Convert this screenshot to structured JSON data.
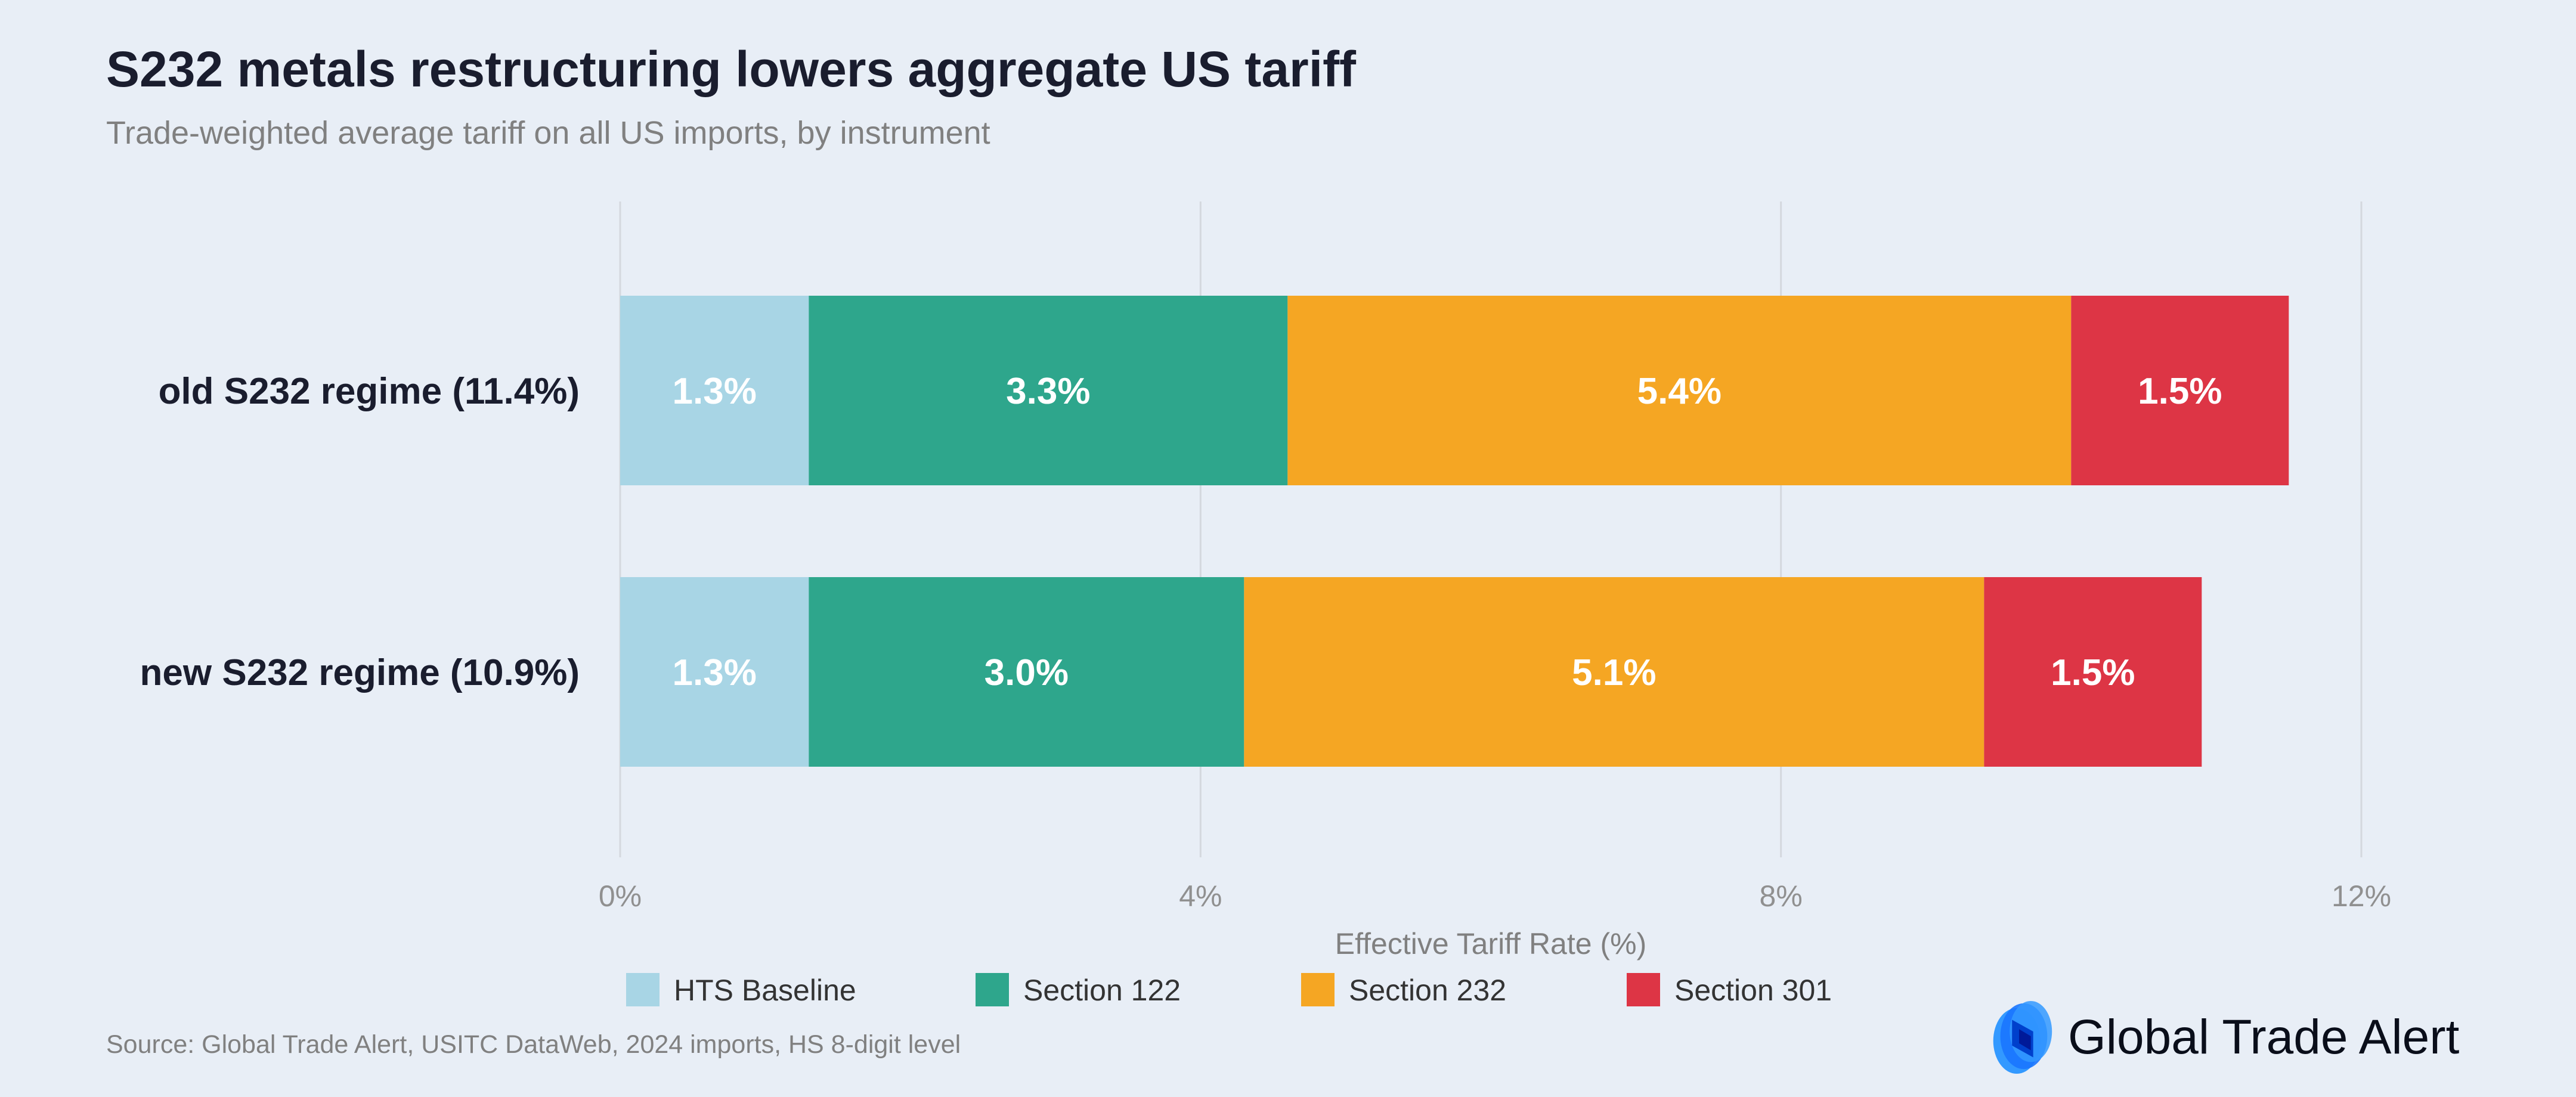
{
  "title": "S232 metals restructuring lowers aggregate US tariff",
  "subtitle": "Trade-weighted average tariff on all US imports, by instrument",
  "source": "Source: Global Trade Alert, USITC DataWeb, 2024 imports, HS 8-digit level",
  "logo": {
    "text": "Global Trade Alert",
    "icon": "gta-logo-icon"
  },
  "chart_data": {
    "type": "bar",
    "orientation": "horizontal",
    "stacked": true,
    "categories": [
      "old S232 regime (11.4%)",
      "new S232 regime (10.9%)"
    ],
    "series": [
      {
        "name": "HTS Baseline",
        "color": "#a8d5e5",
        "values": [
          1.3,
          1.3
        ],
        "labels": [
          "1.3%",
          "1.3%"
        ]
      },
      {
        "name": "Section 122",
        "color": "#2ea68c",
        "values": [
          3.3,
          3.0
        ],
        "labels": [
          "3.3%",
          "3.0%"
        ]
      },
      {
        "name": "Section 232",
        "color": "#f5a623",
        "values": [
          5.4,
          5.1
        ],
        "labels": [
          "5.4%",
          "5.1%"
        ]
      },
      {
        "name": "Section 301",
        "color": "#dd3545",
        "values": [
          1.5,
          1.5
        ],
        "labels": [
          "1.5%",
          "1.5%"
        ]
      }
    ],
    "xlabel": "Effective Tariff Rate (%)",
    "xlim": [
      0,
      12
    ],
    "xticks": [
      0,
      4,
      8,
      12
    ],
    "xtick_labels": [
      "0%",
      "4%",
      "8%",
      "12%"
    ],
    "grid": "vertical",
    "legend": "bottom"
  }
}
